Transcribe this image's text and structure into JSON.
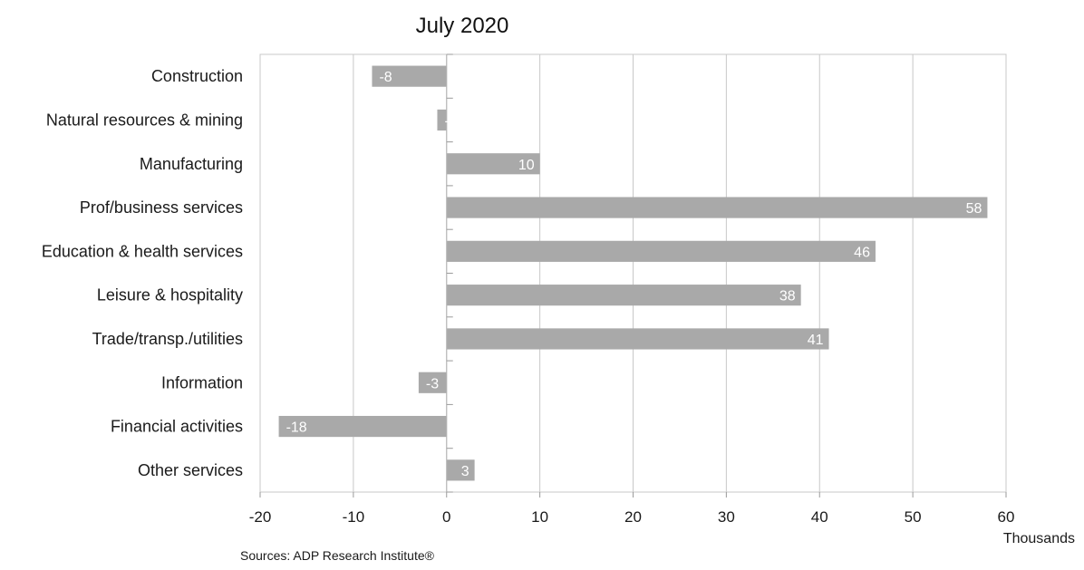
{
  "chart_data": {
    "type": "bar",
    "orientation": "horizontal",
    "title": "July 2020",
    "xlabel": "Thousands",
    "ylabel": "",
    "xlim": [
      -20,
      60
    ],
    "x_ticks": [
      -20,
      -10,
      0,
      10,
      20,
      30,
      40,
      50,
      60
    ],
    "grid": "vertical",
    "legend": "none",
    "bar_color": "#a9a9a9",
    "categories": [
      "Construction",
      "Natural resources & mining",
      "Manufacturing",
      "Prof/business services",
      "Education & health services",
      "Leisure & hospitality",
      "Trade/transp./utilities",
      "Information",
      "Financial activities",
      "Other services"
    ],
    "values": [
      -8,
      -1,
      10,
      58,
      46,
      38,
      41,
      -3,
      -18,
      3
    ],
    "source": "Sources: ADP Research Institute®"
  }
}
